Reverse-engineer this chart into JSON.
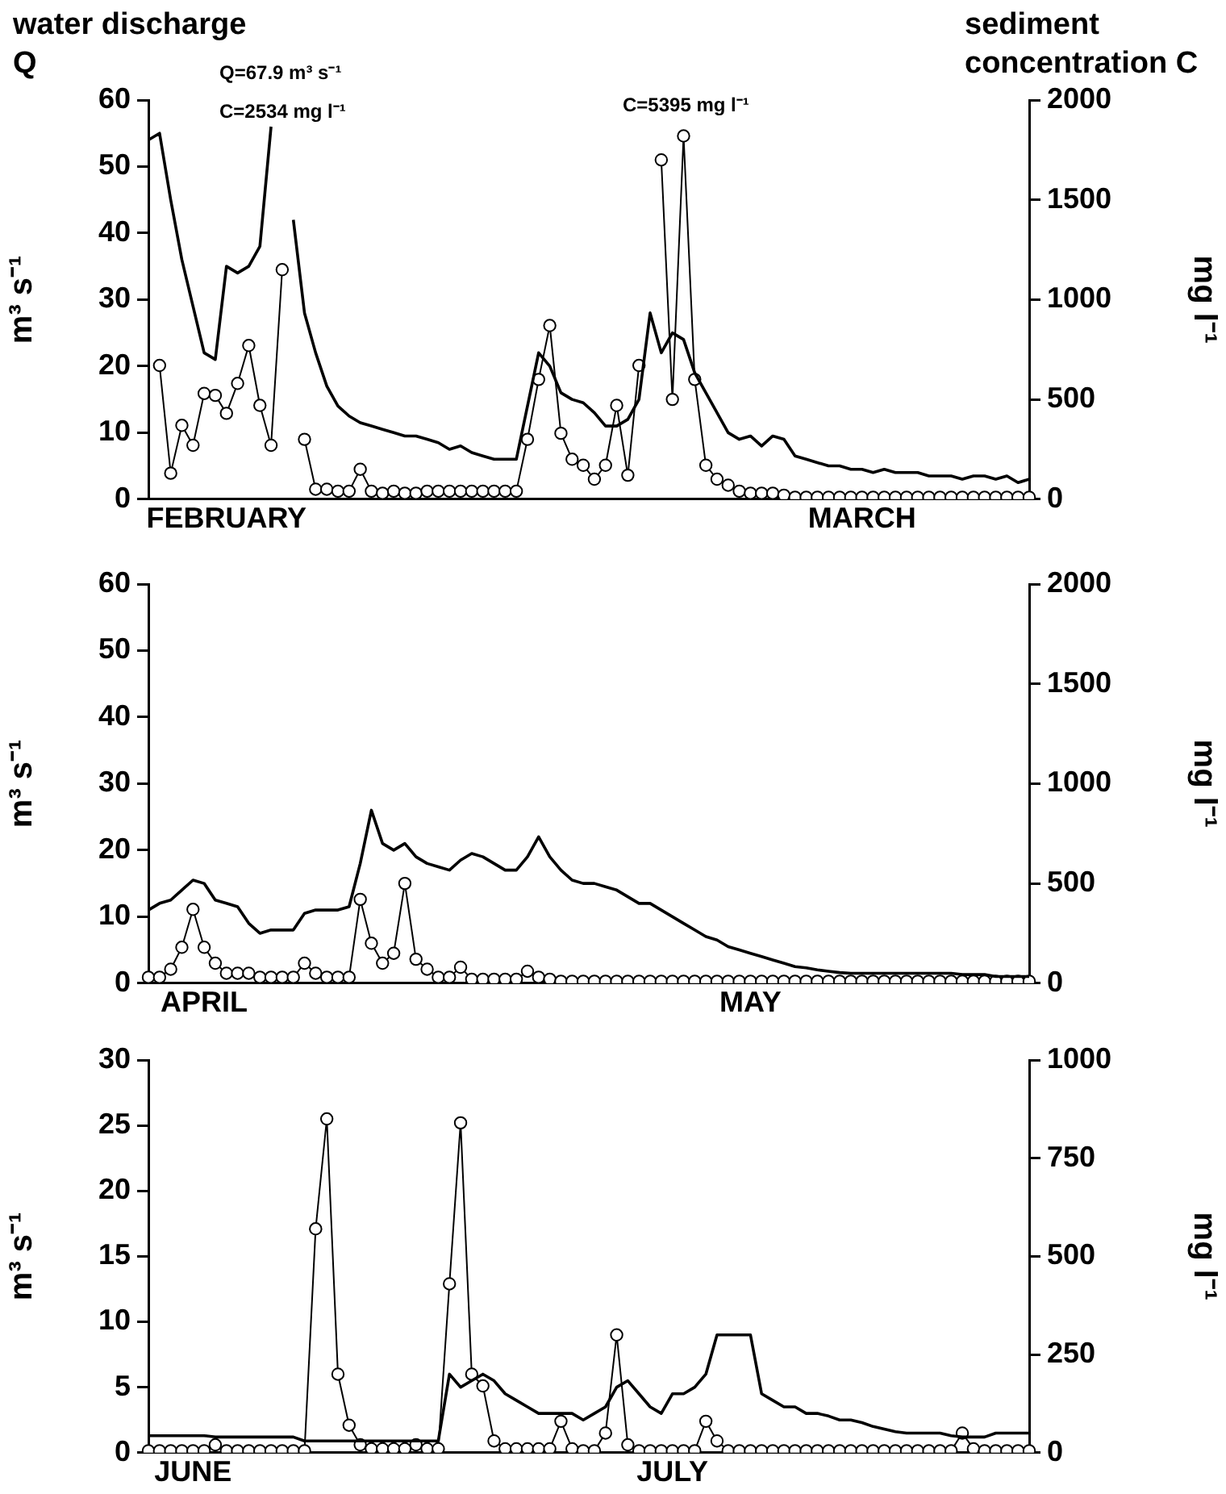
{
  "chart_data": [
    {
      "type": "line",
      "annotations": [
        "water discharge Q",
        "sediment concentration C",
        "Q=67.9 m³ s⁻¹",
        "C=2534 mg l⁻¹",
        "C=5395 mg l⁻¹"
      ],
      "ylabel": "m³ s⁻¹",
      "y2label": "mg l⁻¹",
      "ylim": [
        0,
        60
      ],
      "yticks": [
        0,
        10,
        20,
        30,
        40,
        50,
        60
      ],
      "y2lim": [
        0,
        2000
      ],
      "y2ticks": [
        0,
        500,
        1000,
        1500,
        2000
      ],
      "grid": false,
      "legend": false,
      "categories": [
        null,
        null,
        null,
        null,
        null,
        null,
        null,
        "FEBRUARY",
        null,
        null,
        null,
        null,
        null,
        null,
        null,
        null,
        null,
        null,
        null,
        null,
        null,
        null,
        null,
        null,
        null,
        null,
        null,
        null,
        null,
        null,
        null,
        null,
        null,
        null,
        null,
        null,
        null,
        null,
        null,
        null,
        null,
        null,
        null,
        null,
        null,
        null,
        null,
        null,
        null,
        null,
        null,
        null,
        null,
        null,
        null,
        null,
        null,
        null,
        null,
        null,
        null,
        null,
        null,
        null,
        "MARCH",
        null,
        null,
        null,
        null,
        null,
        null,
        null,
        null,
        null,
        null,
        null,
        null,
        null,
        null,
        null
      ],
      "series": [
        {
          "type": "line",
          "color": "#000000",
          "marker": "none",
          "values": [
            54,
            55,
            45,
            36,
            29,
            22,
            21,
            35,
            34,
            35,
            38,
            56,
            null,
            42,
            28,
            22,
            17,
            14,
            12.5,
            11.5,
            11,
            10.5,
            10,
            9.5,
            9.5,
            9,
            8.5,
            7.5,
            8,
            7,
            6.5,
            6,
            6,
            6,
            14,
            22,
            20,
            16,
            15,
            14.5,
            13,
            11,
            11,
            12,
            15,
            28,
            22,
            25,
            24,
            19,
            16,
            13,
            10,
            9,
            9.5,
            8,
            9.5,
            9,
            6.5,
            6,
            5.5,
            5,
            5,
            4.5,
            4.5,
            4,
            4.5,
            4,
            4,
            4,
            3.5,
            3.5,
            3.5,
            3,
            3.5,
            3.5,
            3,
            3.5,
            2.5,
            3
          ]
        },
        {
          "type": "line",
          "axis": "y2",
          "color": "#000000",
          "marker": "circle",
          "values": [
            null,
            670,
            130,
            370,
            270,
            530,
            520,
            430,
            580,
            770,
            470,
            270,
            1150,
            null,
            300,
            50,
            50,
            40,
            40,
            150,
            40,
            30,
            40,
            30,
            30,
            40,
            40,
            40,
            40,
            40,
            40,
            40,
            40,
            40,
            300,
            600,
            870,
            330,
            200,
            170,
            100,
            170,
            470,
            120,
            670,
            null,
            1700,
            500,
            1820,
            600,
            170,
            100,
            70,
            40,
            30,
            30,
            30,
            20,
            10,
            10,
            10,
            10,
            10,
            10,
            10,
            10,
            10,
            10,
            10,
            10,
            10,
            10,
            10,
            10,
            10,
            10,
            10,
            10,
            10,
            10
          ]
        }
      ]
    },
    {
      "type": "line",
      "ylabel": "m³ s⁻¹",
      "y2label": "mg l⁻¹",
      "ylim": [
        0,
        60
      ],
      "yticks": [
        0,
        10,
        20,
        30,
        40,
        50,
        60
      ],
      "y2lim": [
        0,
        2000
      ],
      "y2ticks": [
        0,
        500,
        1000,
        1500,
        2000
      ],
      "grid": false,
      "legend": false,
      "categories": [
        null,
        null,
        null,
        null,
        null,
        "APRIL",
        null,
        null,
        null,
        null,
        null,
        null,
        null,
        null,
        null,
        null,
        null,
        null,
        null,
        null,
        null,
        null,
        null,
        null,
        null,
        null,
        null,
        null,
        null,
        null,
        null,
        null,
        null,
        null,
        null,
        null,
        null,
        null,
        null,
        null,
        null,
        null,
        null,
        null,
        null,
        null,
        null,
        null,
        null,
        null,
        null,
        null,
        null,
        null,
        "MAY",
        null,
        null,
        null,
        null,
        null,
        null,
        null,
        null,
        null,
        null,
        null,
        null,
        null,
        null,
        null,
        null,
        null,
        null,
        null,
        null,
        null,
        null,
        null,
        null,
        null
      ],
      "series": [
        {
          "type": "line",
          "color": "#000000",
          "marker": "none",
          "values": [
            11,
            12,
            12.5,
            14,
            15.5,
            15,
            12.5,
            12,
            11.5,
            9,
            7.5,
            8,
            8,
            8,
            10.5,
            11,
            11,
            11,
            11.5,
            18,
            26,
            21,
            20,
            21,
            19,
            18,
            17.5,
            17,
            18.5,
            19.5,
            19,
            18,
            17,
            17,
            19,
            22,
            19,
            17,
            15.5,
            15,
            15,
            14.5,
            14,
            13,
            12,
            12,
            11,
            10,
            9,
            8,
            7,
            6.5,
            5.5,
            5,
            4.5,
            4,
            3.5,
            3,
            2.5,
            2.3,
            2,
            1.8,
            1.6,
            1.5,
            1.5,
            1.5,
            1.5,
            1.5,
            1.5,
            1.5,
            1.5,
            1.5,
            1.5,
            1.3,
            1.3,
            1.3,
            1,
            1,
            1,
            1
          ]
        },
        {
          "type": "line",
          "axis": "y2",
          "color": "#000000",
          "marker": "circle",
          "values": [
            30,
            30,
            70,
            180,
            370,
            180,
            100,
            50,
            50,
            50,
            30,
            30,
            30,
            30,
            100,
            50,
            30,
            30,
            30,
            420,
            200,
            100,
            150,
            500,
            120,
            70,
            30,
            30,
            80,
            20,
            20,
            20,
            20,
            20,
            60,
            30,
            20,
            10,
            10,
            10,
            10,
            10,
            10,
            10,
            10,
            10,
            10,
            10,
            10,
            10,
            10,
            10,
            10,
            10,
            10,
            10,
            10,
            10,
            10,
            10,
            10,
            10,
            10,
            10,
            10,
            10,
            10,
            10,
            10,
            10,
            10,
            10,
            10,
            10,
            10,
            10,
            10,
            10,
            10,
            10
          ]
        }
      ]
    },
    {
      "type": "line",
      "ylabel": "m³ s⁻¹",
      "y2label": "mg l⁻¹",
      "ylim": [
        0,
        30
      ],
      "yticks": [
        0,
        5,
        10,
        15,
        20,
        25,
        30
      ],
      "y2lim": [
        0,
        1000
      ],
      "y2ticks": [
        0,
        250,
        500,
        750,
        1000
      ],
      "grid": false,
      "legend": false,
      "categories": [
        null,
        null,
        null,
        null,
        "JUNE",
        null,
        null,
        null,
        null,
        null,
        null,
        null,
        null,
        null,
        null,
        null,
        null,
        null,
        null,
        null,
        null,
        null,
        null,
        null,
        null,
        null,
        null,
        null,
        null,
        null,
        null,
        null,
        null,
        null,
        null,
        null,
        null,
        null,
        null,
        null,
        null,
        null,
        null,
        null,
        null,
        null,
        null,
        "JULY",
        null,
        null,
        null,
        null,
        null,
        null,
        null,
        null,
        null,
        null,
        null,
        null,
        null,
        null,
        null,
        null,
        null,
        null,
        null,
        null,
        null,
        null,
        null,
        null,
        null,
        null,
        null,
        null,
        null,
        null,
        null,
        null
      ],
      "series": [
        {
          "type": "line",
          "color": "#000000",
          "marker": "none",
          "values": [
            1.3,
            1.3,
            1.3,
            1.3,
            1.3,
            1.3,
            1.2,
            1.2,
            1.2,
            1.2,
            1.2,
            1.2,
            1.2,
            1.2,
            0.9,
            0.9,
            0.9,
            0.9,
            0.9,
            0.9,
            0.9,
            0.9,
            0.9,
            0.9,
            0.9,
            0.9,
            0.9,
            6,
            5,
            5.5,
            6,
            5.5,
            4.5,
            4,
            3.5,
            3,
            3,
            3,
            3,
            2.5,
            3,
            3.5,
            5,
            5.5,
            4.5,
            3.5,
            3,
            4.5,
            4.5,
            5,
            6,
            9,
            9,
            9,
            9,
            4.5,
            4,
            3.5,
            3.5,
            3,
            3,
            2.8,
            2.5,
            2.5,
            2.3,
            2,
            1.8,
            1.6,
            1.5,
            1.5,
            1.5,
            1.5,
            1.3,
            1.2,
            1.2,
            1.2,
            1.5,
            1.5,
            1.5,
            1.5
          ]
        },
        {
          "type": "line",
          "axis": "y2",
          "color": "#000000",
          "marker": "circle",
          "values": [
            5,
            5,
            5,
            5,
            5,
            5,
            20,
            5,
            5,
            5,
            5,
            5,
            5,
            5,
            5,
            570,
            850,
            200,
            70,
            20,
            10,
            10,
            10,
            10,
            20,
            10,
            10,
            430,
            840,
            200,
            170,
            30,
            10,
            10,
            10,
            10,
            10,
            80,
            10,
            5,
            5,
            50,
            300,
            20,
            5,
            5,
            5,
            5,
            5,
            5,
            80,
            30,
            5,
            5,
            5,
            5,
            5,
            5,
            5,
            5,
            5,
            5,
            5,
            5,
            5,
            5,
            5,
            5,
            5,
            5,
            5,
            5,
            5,
            50,
            10,
            5,
            5,
            5,
            5,
            5
          ]
        }
      ]
    }
  ]
}
